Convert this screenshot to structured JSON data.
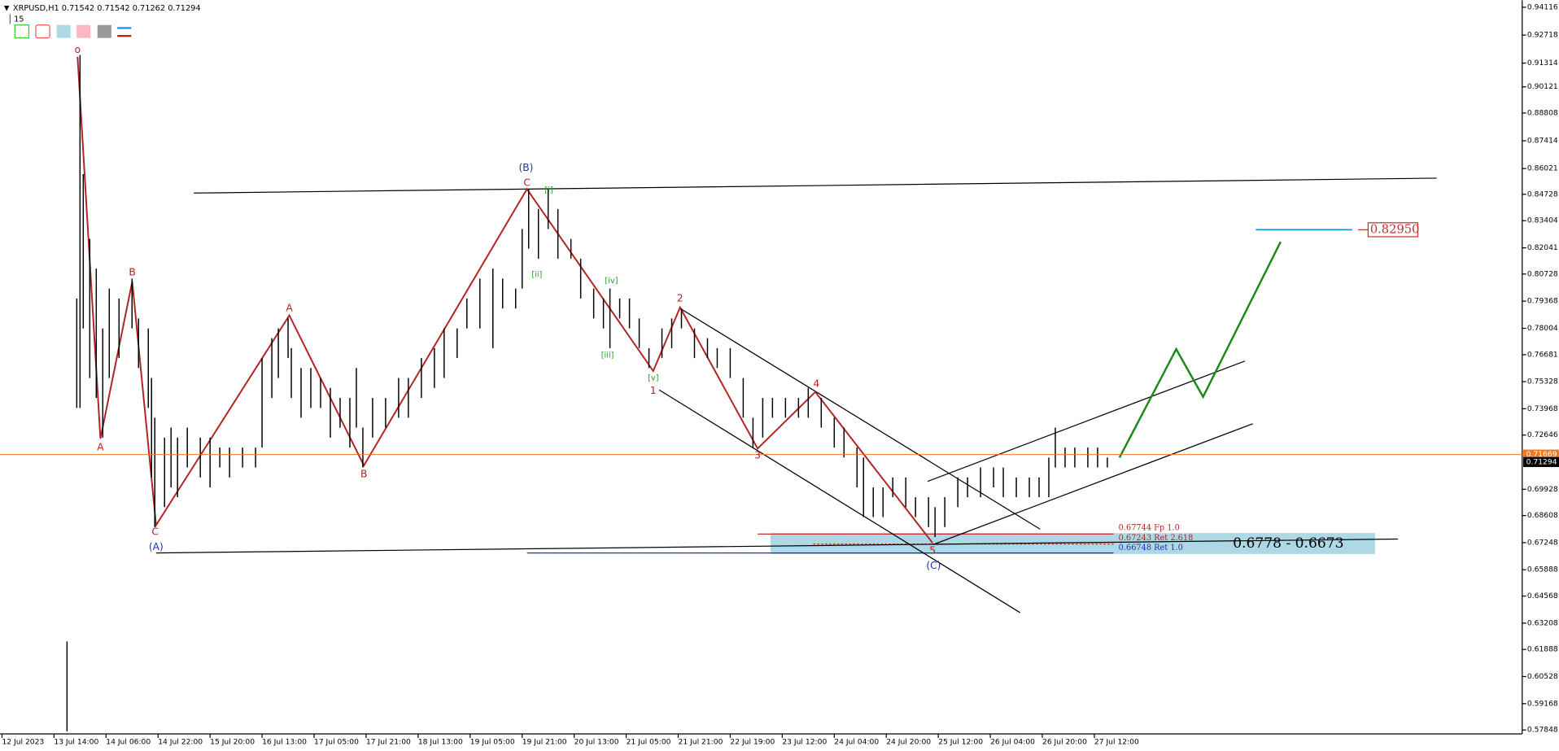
{
  "header": {
    "symbol": "XRPUSD,H1",
    "quote": "0.71542 0.71542 0.71262 0.71294",
    "period": "15"
  },
  "chart_data": {
    "type": "ohlc",
    "x": [
      20,
      23,
      24,
      25,
      27,
      29,
      31,
      33,
      36,
      40,
      42,
      45,
      46,
      47,
      50,
      52,
      54,
      57,
      61,
      64,
      67,
      70,
      74,
      78,
      80,
      83,
      85,
      88,
      89,
      92,
      95,
      98,
      101,
      104,
      107,
      109,
      111,
      114,
      118,
      122,
      125,
      129,
      133,
      136,
      140,
      143,
      147,
      151,
      154,
      158,
      160,
      162,
      165,
      168,
      171,
      175,
      178,
      182,
      185,
      187,
      190,
      193,
      196,
      199,
      203,
      206,
      209,
      213,
      217,
      220,
      224,
      228,
      231,
      234,
      237,
      241,
      245,
      248,
      252,
      256,
      259,
      263,
      265,
      268,
      271,
      274,
      278,
      281,
      285,
      287,
      290,
      294,
      297,
      301,
      305,
      308,
      312,
      316,
      319,
      322,
      324,
      327,
      330,
      334,
      337,
      340
    ],
    "high": [
      0.6229,
      0.795,
      0.9172,
      0.8574,
      0.8249,
      0.81,
      0.78,
      0.8,
      0.795,
      0.805,
      0.785,
      0.78,
      0.7551,
      0.7352,
      0.7252,
      0.7302,
      0.7252,
      0.7302,
      0.7252,
      0.7252,
      0.7202,
      0.7202,
      0.7202,
      0.7202,
      0.7651,
      0.7751,
      0.78,
      0.785,
      0.7701,
      0.7601,
      0.7601,
      0.7551,
      0.7501,
      0.7451,
      0.7451,
      0.7601,
      0.7302,
      0.7451,
      0.7451,
      0.7551,
      0.7551,
      0.7651,
      0.7701,
      0.78,
      0.78,
      0.795,
      0.805,
      0.81,
      0.805,
      0.8,
      0.8299,
      0.8499,
      0.8399,
      0.8499,
      0.8399,
      0.8249,
      0.815,
      0.8,
      0.795,
      0.8,
      0.795,
      0.795,
      0.785,
      0.7701,
      0.78,
      0.785,
      0.79,
      0.78,
      0.7751,
      0.7701,
      0.7701,
      0.7551,
      0.7352,
      0.7451,
      0.7451,
      0.7451,
      0.7451,
      0.7501,
      0.7451,
      0.7352,
      0.7302,
      0.7202,
      0.7152,
      0.7002,
      0.7002,
      0.7052,
      0.7052,
      0.6953,
      0.6953,
      0.6903,
      0.6953,
      0.7052,
      0.7052,
      0.7102,
      0.7102,
      0.7102,
      0.7052,
      0.7052,
      0.7052,
      0.7152,
      0.7302,
      0.7202,
      0.7202,
      0.7202,
      0.7202,
      0.7152
    ],
    "low": [
      0.5778,
      0.7401,
      0.7401,
      0.78,
      0.7551,
      0.7451,
      0.7252,
      0.7551,
      0.7651,
      0.78,
      0.7601,
      0.7401,
      0.7052,
      0.6803,
      0.6903,
      0.7002,
      0.6953,
      0.7102,
      0.7052,
      0.7002,
      0.7102,
      0.7052,
      0.7102,
      0.7102,
      0.7202,
      0.7451,
      0.7551,
      0.7651,
      0.7451,
      0.7352,
      0.7401,
      0.7401,
      0.7252,
      0.7302,
      0.7202,
      0.7302,
      0.7102,
      0.7252,
      0.7302,
      0.7352,
      0.7352,
      0.7451,
      0.7501,
      0.7551,
      0.7651,
      0.78,
      0.78,
      0.7701,
      0.79,
      0.79,
      0.8,
      0.82,
      0.815,
      0.8299,
      0.815,
      0.815,
      0.795,
      0.785,
      0.78,
      0.7701,
      0.785,
      0.78,
      0.7701,
      0.7601,
      0.7651,
      0.7701,
      0.78,
      0.7651,
      0.7651,
      0.7601,
      0.7551,
      0.7352,
      0.7202,
      0.7252,
      0.7352,
      0.7352,
      0.7352,
      0.7352,
      0.7302,
      0.7202,
      0.7152,
      0.7002,
      0.6853,
      0.6853,
      0.6853,
      0.6953,
      0.6903,
      0.6853,
      0.6803,
      0.6753,
      0.6803,
      0.6903,
      0.6953,
      0.6953,
      0.7002,
      0.6953,
      0.6953,
      0.6953,
      0.6953,
      0.6953,
      0.7102,
      0.7102,
      0.7102,
      0.7102,
      0.7102,
      0.7102
    ],
    "xlim": [
      0,
      467
    ],
    "ylim": [
      0.5765,
      0.9447
    ],
    "yticks": [
      0.94116,
      0.92718,
      0.91314,
      0.90121,
      0.88808,
      0.87414,
      0.86021,
      0.84728,
      0.83404,
      0.82041,
      0.80728,
      0.79368,
      0.78004,
      0.76681,
      0.75328,
      0.73968,
      0.72646,
      0.69928,
      0.68608,
      0.67248,
      0.65888,
      0.64568,
      0.63208,
      0.61888,
      0.60528,
      0.59168,
      0.57848
    ],
    "xticks": [
      {
        "value": 0,
        "label": "12 Jul 2023"
      },
      {
        "value": 16,
        "label": "13 Jul 14:00"
      },
      {
        "value": 32,
        "label": "14 Jul 06:00"
      },
      {
        "value": 48,
        "label": "14 Jul 22:00"
      },
      {
        "value": 64,
        "label": "15 Jul 20:00"
      },
      {
        "value": 80,
        "label": "16 Jul 13:00"
      },
      {
        "value": 96,
        "label": "17 Jul 05:00"
      },
      {
        "value": 112,
        "label": "17 Jul 21:00"
      },
      {
        "value": 128,
        "label": "18 Jul 13:00"
      },
      {
        "value": 144,
        "label": "19 Jul 05:00"
      },
      {
        "value": 160,
        "label": "19 Jul 21:00"
      },
      {
        "value": 176,
        "label": "20 Jul 13:00"
      },
      {
        "value": 192,
        "label": "21 Jul 05:00"
      },
      {
        "value": 208,
        "label": "21 Jul 21:00"
      },
      {
        "value": 224,
        "label": "22 Jul 19:00"
      },
      {
        "value": 240,
        "label": "23 Jul 12:00"
      },
      {
        "value": 256,
        "label": "24 Jul 04:00"
      },
      {
        "value": 272,
        "label": "24 Jul 20:00"
      },
      {
        "value": 288,
        "label": "25 Jul 12:00"
      },
      {
        "value": 304,
        "label": "26 Jul 04:00"
      },
      {
        "value": 320,
        "label": "26 Jul 20:00"
      },
      {
        "value": 336,
        "label": "27 Jul 12:00"
      }
    ],
    "bar_color": "#000000",
    "bid": 0.71669,
    "bid_color": "#f07820",
    "last": 0.71294,
    "target": {
      "value": 0.8295,
      "label": "0.82950"
    },
    "target_color": "#1e90d0",
    "annotations": [
      "o",
      "B",
      "A",
      "C",
      "(A)",
      "A",
      "B",
      "(B)",
      "C",
      "[i]",
      "[ii]",
      "[iv]",
      "[iii]",
      "[v]",
      "1",
      "2",
      "3",
      "4",
      "5",
      "(C)"
    ],
    "fib_levels": [
      "0.67744 Fp 1.0",
      "0.67243 Ret 2.618",
      "0.66748 Ret 1.0"
    ],
    "zone_label": "0.6778 - 0.6673"
  }
}
